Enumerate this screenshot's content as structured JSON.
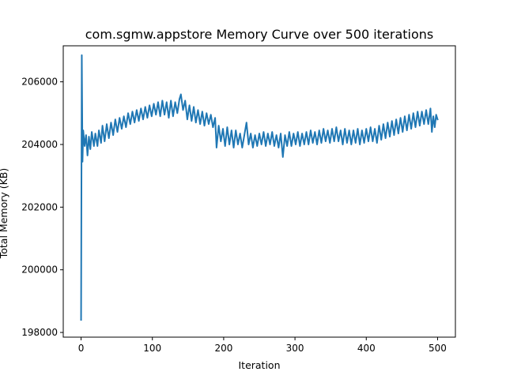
{
  "chart_data": {
    "type": "line",
    "title": "com.sgmw.appstore Memory Curve over 500 iterations",
    "xlabel": "Iteration",
    "ylabel": "Total Memory (KB)",
    "xlim": [
      -25,
      525
    ],
    "ylim": [
      197850,
      207150
    ],
    "xticks": [
      0,
      100,
      200,
      300,
      400,
      500
    ],
    "yticks": [
      198000,
      200000,
      202000,
      204000,
      206000
    ],
    "grid": false,
    "series": [
      {
        "color": "#1f77b4",
        "points": [
          [
            0,
            198400
          ],
          [
            1,
            206850
          ],
          [
            2,
            203450
          ],
          [
            3,
            204450
          ],
          [
            5,
            203950
          ],
          [
            7,
            204300
          ],
          [
            9,
            203650
          ],
          [
            11,
            204250
          ],
          [
            13,
            203850
          ],
          [
            15,
            204400
          ],
          [
            18,
            203950
          ],
          [
            20,
            204350
          ],
          [
            23,
            203950
          ],
          [
            25,
            204450
          ],
          [
            28,
            204050
          ],
          [
            30,
            204600
          ],
          [
            33,
            204100
          ],
          [
            36,
            204650
          ],
          [
            39,
            204200
          ],
          [
            42,
            204700
          ],
          [
            45,
            204300
          ],
          [
            48,
            204800
          ],
          [
            51,
            204400
          ],
          [
            54,
            204850
          ],
          [
            57,
            204500
          ],
          [
            60,
            204900
          ],
          [
            63,
            204550
          ],
          [
            66,
            205000
          ],
          [
            69,
            204650
          ],
          [
            72,
            205050
          ],
          [
            75,
            204700
          ],
          [
            78,
            205100
          ],
          [
            81,
            204750
          ],
          [
            84,
            205150
          ],
          [
            87,
            204800
          ],
          [
            90,
            205200
          ],
          [
            93,
            204850
          ],
          [
            96,
            205250
          ],
          [
            99,
            204900
          ],
          [
            102,
            205300
          ],
          [
            105,
            204950
          ],
          [
            108,
            205350
          ],
          [
            111,
            204900
          ],
          [
            114,
            205400
          ],
          [
            117,
            204950
          ],
          [
            120,
            205350
          ],
          [
            123,
            204850
          ],
          [
            126,
            205400
          ],
          [
            129,
            204900
          ],
          [
            132,
            205350
          ],
          [
            135,
            205000
          ],
          [
            138,
            205450
          ],
          [
            140,
            205600
          ],
          [
            143,
            205100
          ],
          [
            146,
            205400
          ],
          [
            149,
            204800
          ],
          [
            152,
            205250
          ],
          [
            155,
            204750
          ],
          [
            158,
            205200
          ],
          [
            161,
            204700
          ],
          [
            164,
            205100
          ],
          [
            167,
            204650
          ],
          [
            170,
            205050
          ],
          [
            173,
            204600
          ],
          [
            176,
            205000
          ],
          [
            179,
            204650
          ],
          [
            182,
            204950
          ],
          [
            185,
            204550
          ],
          [
            188,
            204850
          ],
          [
            190,
            203900
          ],
          [
            193,
            204600
          ],
          [
            196,
            204100
          ],
          [
            199,
            204500
          ],
          [
            202,
            203950
          ],
          [
            205,
            204550
          ],
          [
            208,
            204000
          ],
          [
            211,
            204450
          ],
          [
            214,
            203900
          ],
          [
            217,
            204450
          ],
          [
            220,
            204000
          ],
          [
            223,
            204350
          ],
          [
            226,
            203900
          ],
          [
            229,
            204300
          ],
          [
            232,
            204700
          ],
          [
            235,
            204000
          ],
          [
            238,
            204350
          ],
          [
            241,
            203900
          ],
          [
            244,
            204300
          ],
          [
            247,
            203950
          ],
          [
            250,
            204350
          ],
          [
            253,
            204000
          ],
          [
            256,
            204400
          ],
          [
            259,
            203950
          ],
          [
            262,
            204350
          ],
          [
            265,
            204000
          ],
          [
            268,
            204400
          ],
          [
            271,
            203950
          ],
          [
            274,
            204300
          ],
          [
            277,
            203900
          ],
          [
            280,
            204350
          ],
          [
            283,
            203600
          ],
          [
            286,
            204300
          ],
          [
            289,
            203950
          ],
          [
            292,
            204400
          ],
          [
            295,
            203950
          ],
          [
            298,
            204350
          ],
          [
            301,
            204000
          ],
          [
            304,
            204400
          ],
          [
            307,
            203950
          ],
          [
            310,
            204350
          ],
          [
            313,
            204000
          ],
          [
            316,
            204400
          ],
          [
            319,
            204000
          ],
          [
            322,
            204450
          ],
          [
            325,
            204050
          ],
          [
            328,
            204400
          ],
          [
            331,
            204000
          ],
          [
            334,
            204450
          ],
          [
            337,
            204050
          ],
          [
            340,
            204500
          ],
          [
            343,
            204100
          ],
          [
            346,
            204450
          ],
          [
            349,
            204050
          ],
          [
            352,
            204500
          ],
          [
            355,
            204100
          ],
          [
            358,
            204550
          ],
          [
            361,
            204100
          ],
          [
            364,
            204450
          ],
          [
            367,
            204000
          ],
          [
            370,
            204500
          ],
          [
            373,
            204050
          ],
          [
            376,
            204450
          ],
          [
            379,
            204000
          ],
          [
            382,
            204450
          ],
          [
            385,
            204050
          ],
          [
            388,
            204500
          ],
          [
            391,
            204000
          ],
          [
            394,
            204450
          ],
          [
            397,
            204050
          ],
          [
            400,
            204500
          ],
          [
            403,
            204100
          ],
          [
            406,
            204550
          ],
          [
            409,
            204100
          ],
          [
            412,
            204500
          ],
          [
            415,
            204050
          ],
          [
            418,
            204600
          ],
          [
            421,
            204150
          ],
          [
            424,
            204650
          ],
          [
            427,
            204200
          ],
          [
            430,
            204700
          ],
          [
            433,
            204250
          ],
          [
            436,
            204750
          ],
          [
            439,
            204300
          ],
          [
            442,
            204800
          ],
          [
            445,
            204350
          ],
          [
            448,
            204850
          ],
          [
            451,
            204400
          ],
          [
            454,
            204900
          ],
          [
            457,
            204450
          ],
          [
            460,
            204950
          ],
          [
            463,
            204500
          ],
          [
            466,
            205000
          ],
          [
            469,
            204550
          ],
          [
            472,
            205050
          ],
          [
            475,
            204600
          ],
          [
            478,
            205050
          ],
          [
            481,
            204650
          ],
          [
            484,
            205100
          ],
          [
            487,
            204650
          ],
          [
            490,
            205150
          ],
          [
            492,
            204400
          ],
          [
            494,
            204900
          ],
          [
            496,
            204550
          ],
          [
            498,
            204950
          ],
          [
            500,
            204800
          ]
        ]
      }
    ]
  }
}
